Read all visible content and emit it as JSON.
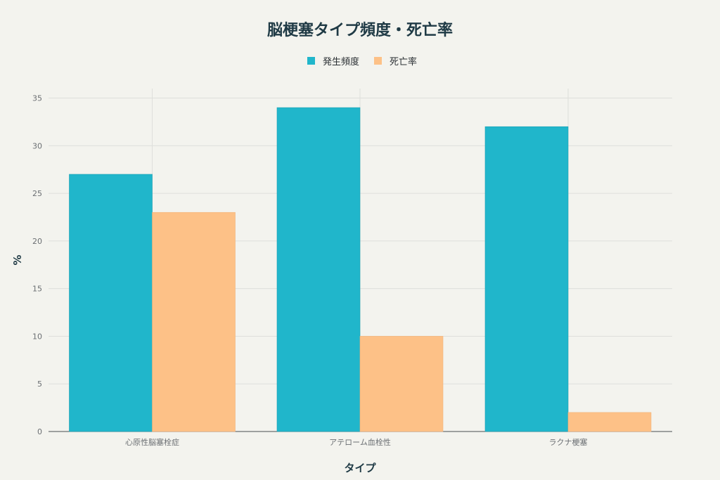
{
  "chart_data": {
    "type": "bar",
    "title": "脳梗塞タイプ頻度・死亡率",
    "xlabel": "タイプ",
    "ylabel": "%",
    "categories": [
      "心原性脳塞栓症",
      "アテローム血栓性",
      "ラクナ梗塞"
    ],
    "series": [
      {
        "name": "発生頻度",
        "values": [
          27,
          34,
          32
        ],
        "color": "#20b6cb"
      },
      {
        "name": "死亡率",
        "values": [
          23,
          10,
          2
        ],
        "color": "#fdc187"
      }
    ],
    "ylim": [
      0,
      36
    ],
    "yticks": [
      "0",
      "5",
      "10",
      "15",
      "20",
      "25",
      "30",
      "35"
    ],
    "grid": true,
    "legend_position": "top-center"
  }
}
